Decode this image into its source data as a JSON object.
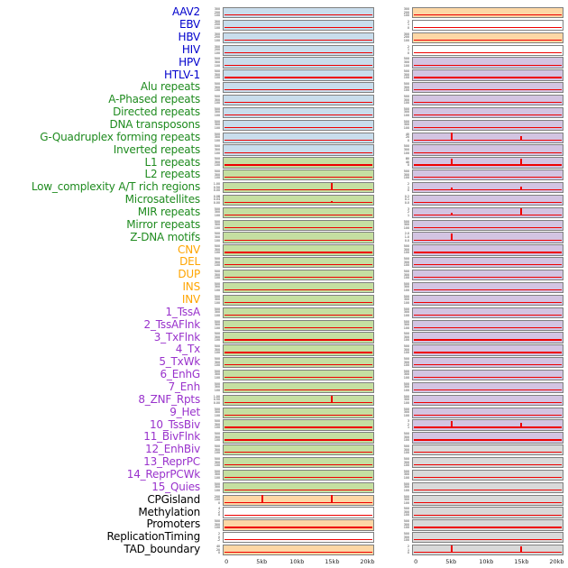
{
  "colors": {
    "label": {
      "virus": "#0000CC",
      "repeat": "#1F8B1F",
      "sv": "#FFA500",
      "chromhmm": "#9932CC",
      "other": "#000000"
    },
    "bg": {
      "blue": "#c9ddec",
      "green": "#c5dfa1",
      "orange": "#fdd7a5",
      "purple": "#d3c4e2",
      "gray": "#d9d9d9",
      "white": "#ffffff"
    },
    "accent_red": "#ee0000",
    "track_border": "#7f7f7f"
  },
  "chart_data": {
    "type": "line",
    "title": "",
    "description": "Two columns of small density tracks per genomic feature; red baseline near zero with red peaks at ~5kb and ~15kb in some tracks.",
    "x_axis": {
      "ticks": [
        "0",
        "5kb",
        "10kb",
        "15kb",
        "20kb"
      ],
      "fractions": [
        0.025,
        0.2575,
        0.49,
        0.7225,
        0.955
      ],
      "range_kb": [
        0,
        21
      ]
    },
    "defaults": {
      "yticks": [
        "500",
        "300",
        "100"
      ]
    },
    "rows": [
      {
        "label": "AAV2",
        "cat": "virus",
        "left": {
          "bg": "blue",
          "yticks": [
            "300",
            "200",
            "100"
          ]
        },
        "right": {
          "bg": "orange",
          "yticks": [
            "300",
            "200",
            "100"
          ]
        }
      },
      {
        "label": "EBV",
        "cat": "virus",
        "left": {
          "bg": "blue",
          "yticks": [
            "300",
            "200",
            "100"
          ]
        },
        "right": {
          "bg": "white",
          "yticks": [
            "2",
            "1",
            "0"
          ]
        }
      },
      {
        "label": "HBV",
        "cat": "virus",
        "left": {
          "bg": "blue",
          "yticks": [
            "300",
            "200",
            "100"
          ]
        },
        "right": {
          "bg": "orange",
          "yticks": [
            "300",
            "200",
            "100"
          ]
        }
      },
      {
        "label": "HIV",
        "cat": "virus",
        "left": {
          "bg": "blue",
          "yticks": [
            "300",
            "200",
            "100"
          ]
        },
        "right": {
          "bg": "white",
          "yticks": [
            "2",
            "1",
            "0"
          ]
        }
      },
      {
        "label": "HPV",
        "cat": "virus",
        "left": {
          "bg": "blue"
        },
        "right": {
          "bg": "purple"
        }
      },
      {
        "label": "HTLV-1",
        "cat": "virus",
        "left": {
          "bg": "blue"
        },
        "right": {
          "bg": "purple"
        }
      },
      {
        "label": "Alu repeats",
        "cat": "repeat",
        "left": {
          "bg": "blue"
        },
        "right": {
          "bg": "purple"
        }
      },
      {
        "label": "A-Phased repeats",
        "cat": "repeat",
        "left": {
          "bg": "blue"
        },
        "right": {
          "bg": "purple"
        }
      },
      {
        "label": "Directed repeats",
        "cat": "repeat",
        "left": {
          "bg": "blue"
        },
        "right": {
          "bg": "purple"
        }
      },
      {
        "label": "DNA transposons",
        "cat": "repeat",
        "left": {
          "bg": "blue"
        },
        "right": {
          "bg": "purple"
        }
      },
      {
        "label": "G-Quadruplex forming repeats",
        "cat": "repeat",
        "left": {
          "bg": "blue"
        },
        "right": {
          "bg": "purple",
          "yticks": [
            "40",
            "20",
            "0"
          ],
          "peaks": [
            [
              0.2575,
              0.95
            ],
            [
              0.7225,
              0.5
            ]
          ]
        }
      },
      {
        "label": "Inverted repeats",
        "cat": "repeat",
        "left": {
          "bg": "blue"
        },
        "right": {
          "bg": "purple"
        }
      },
      {
        "label": "L1 repeats",
        "cat": "repeat",
        "left": {
          "bg": "green"
        },
        "right": {
          "bg": "purple",
          "yticks": [
            "80",
            "40",
            "0"
          ],
          "peaks": [
            [
              0.2575,
              0.85
            ],
            [
              0.7225,
              0.8
            ]
          ]
        }
      },
      {
        "label": "L2 repeats",
        "cat": "repeat",
        "left": {
          "bg": "green"
        },
        "right": {
          "bg": "purple"
        }
      },
      {
        "label": "Low_complexity A/T rich regions",
        "cat": "repeat",
        "left": {
          "bg": "green",
          "yticks": [
            "1.00",
            "0.50",
            "0.00"
          ],
          "peaks": [
            [
              0.7225,
              0.92
            ]
          ]
        },
        "right": {
          "bg": "purple",
          "yticks": [
            "2",
            "1",
            "0"
          ],
          "peaks": [
            [
              0.2575,
              0.3
            ],
            [
              0.7225,
              0.45
            ]
          ]
        }
      },
      {
        "label": "Microsatellites",
        "cat": "repeat",
        "left": {
          "bg": "green",
          "yticks": [
            "0.08",
            "0.04",
            "0.00"
          ],
          "peaks": [
            [
              0.7225,
              0.25
            ]
          ]
        },
        "right": {
          "bg": "purple",
          "yticks": [
            "0.2",
            "0.1",
            "0.0"
          ]
        }
      },
      {
        "label": "MIR repeats",
        "cat": "repeat",
        "left": {
          "bg": "green"
        },
        "right": {
          "bg": "purple",
          "yticks": [
            "3",
            "2",
            "1"
          ],
          "peaks": [
            [
              0.2575,
              0.3
            ],
            [
              0.7225,
              0.85
            ]
          ]
        }
      },
      {
        "label": "Mirror repeats",
        "cat": "repeat",
        "left": {
          "bg": "green"
        },
        "right": {
          "bg": "purple"
        }
      },
      {
        "label": "Z-DNA motifs",
        "cat": "repeat",
        "left": {
          "bg": "green"
        },
        "right": {
          "bg": "purple",
          "yticks": [
            "2.0",
            "1.0",
            "0.0"
          ],
          "peaks": [
            [
              0.2575,
              0.85
            ]
          ]
        }
      },
      {
        "label": "CNV",
        "cat": "sv",
        "left": {
          "bg": "green"
        },
        "right": {
          "bg": "purple"
        }
      },
      {
        "label": "DEL",
        "cat": "sv",
        "left": {
          "bg": "green"
        },
        "right": {
          "bg": "purple"
        }
      },
      {
        "label": "DUP",
        "cat": "sv",
        "left": {
          "bg": "green"
        },
        "right": {
          "bg": "purple"
        }
      },
      {
        "label": "INS",
        "cat": "sv",
        "left": {
          "bg": "green"
        },
        "right": {
          "bg": "purple"
        }
      },
      {
        "label": "INV",
        "cat": "sv",
        "left": {
          "bg": "green"
        },
        "right": {
          "bg": "purple"
        }
      },
      {
        "label": "1_TssA",
        "cat": "chromhmm",
        "left": {
          "bg": "green"
        },
        "right": {
          "bg": "purple"
        }
      },
      {
        "label": "2_TssAFlnk",
        "cat": "chromhmm",
        "left": {
          "bg": "green"
        },
        "right": {
          "bg": "purple"
        }
      },
      {
        "label": "3_TxFlnk",
        "cat": "chromhmm",
        "left": {
          "bg": "green"
        },
        "right": {
          "bg": "purple"
        }
      },
      {
        "label": "4_Tx",
        "cat": "chromhmm",
        "left": {
          "bg": "green"
        },
        "right": {
          "bg": "purple"
        }
      },
      {
        "label": "5_TxWk",
        "cat": "chromhmm",
        "left": {
          "bg": "green"
        },
        "right": {
          "bg": "purple"
        }
      },
      {
        "label": "6_EnhG",
        "cat": "chromhmm",
        "left": {
          "bg": "green"
        },
        "right": {
          "bg": "purple"
        }
      },
      {
        "label": "7_Enh",
        "cat": "chromhmm",
        "left": {
          "bg": "green"
        },
        "right": {
          "bg": "purple"
        }
      },
      {
        "label": "8_ZNF_Rpts",
        "cat": "chromhmm",
        "left": {
          "bg": "green",
          "yticks": [
            "1.00",
            "0.50",
            "0.00"
          ],
          "peaks": [
            [
              0.7225,
              0.88
            ]
          ]
        },
        "right": {
          "bg": "purple"
        }
      },
      {
        "label": "9_Het",
        "cat": "chromhmm",
        "left": {
          "bg": "green"
        },
        "right": {
          "bg": "purple"
        }
      },
      {
        "label": "10_TssBiv",
        "cat": "chromhmm",
        "left": {
          "bg": "green"
        },
        "right": {
          "bg": "purple",
          "yticks": [
            "3",
            "2",
            "1"
          ],
          "peaks": [
            [
              0.2575,
              0.85
            ],
            [
              0.7225,
              0.55
            ]
          ]
        }
      },
      {
        "label": "11_BivFlnk",
        "cat": "chromhmm",
        "left": {
          "bg": "green"
        },
        "right": {
          "bg": "purple"
        }
      },
      {
        "label": "12_EnhBiv",
        "cat": "chromhmm",
        "left": {
          "bg": "green"
        },
        "right": {
          "bg": "gray"
        }
      },
      {
        "label": "13_ReprPC",
        "cat": "chromhmm",
        "left": {
          "bg": "green"
        },
        "right": {
          "bg": "gray"
        }
      },
      {
        "label": "14_ReprPCWk",
        "cat": "chromhmm",
        "left": {
          "bg": "green"
        },
        "right": {
          "bg": "gray"
        }
      },
      {
        "label": "15_Quies",
        "cat": "chromhmm",
        "left": {
          "bg": "green"
        },
        "right": {
          "bg": "gray"
        }
      },
      {
        "label": "CPGisland",
        "cat": "other",
        "left": {
          "bg": "orange",
          "yticks": [
            "200",
            "100",
            "0"
          ],
          "peaks": [
            [
              0.2575,
              0.95
            ],
            [
              0.7225,
              0.9
            ]
          ]
        },
        "right": {
          "bg": "gray"
        }
      },
      {
        "label": "Methylation",
        "cat": "other",
        "left": {
          "bg": "white",
          "yticks": [
            "4",
            "2",
            "0"
          ]
        },
        "right": {
          "bg": "gray"
        }
      },
      {
        "label": "Promoters",
        "cat": "other",
        "left": {
          "bg": "orange"
        },
        "right": {
          "bg": "gray"
        }
      },
      {
        "label": "ReplicationTiming",
        "cat": "other",
        "left": {
          "bg": "white",
          "yticks": [
            "2",
            "0",
            "-2"
          ]
        },
        "right": {
          "bg": "gray"
        }
      },
      {
        "label": "TAD_boundary",
        "cat": "other",
        "left": {
          "bg": "orange",
          "yticks": [
            "40",
            "20",
            "0"
          ]
        },
        "right": {
          "bg": "gray",
          "yticks": [
            "2",
            "1",
            "0"
          ],
          "peaks": [
            [
              0.2575,
              0.85
            ],
            [
              0.7225,
              0.8
            ]
          ]
        }
      }
    ]
  }
}
